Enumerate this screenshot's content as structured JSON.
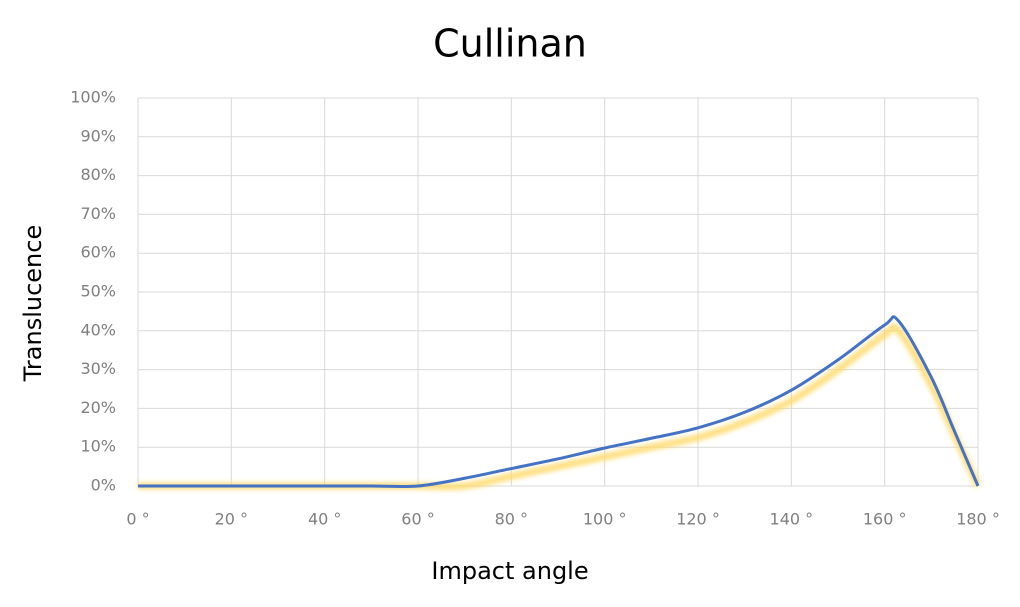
{
  "chart_data": {
    "type": "line",
    "title": "Cullinan",
    "x_label": "Impact angle",
    "y_label": "Translucence",
    "x": [
      0,
      10,
      20,
      30,
      40,
      50,
      60,
      70,
      80,
      90,
      100,
      110,
      120,
      130,
      140,
      150,
      160,
      163,
      170,
      175,
      180
    ],
    "series": [
      {
        "color": "#ffd966",
        "values": [
          0,
          0,
          0,
          0,
          0,
          0,
          0,
          0,
          2.5,
          5,
          7.5,
          10,
          12.5,
          16.5,
          22,
          30,
          39,
          40,
          26,
          13,
          0
        ]
      },
      {
        "color": "#4472c4",
        "values": [
          0,
          0,
          0,
          0,
          0,
          0,
          0,
          2,
          4.5,
          7,
          9.8,
          12.3,
          15,
          19,
          24.7,
          32.5,
          41.5,
          42.5,
          28,
          14,
          0
        ]
      }
    ],
    "xlim": [
      0,
      180
    ],
    "xticks": [
      {
        "value": 0,
        "label": "0 °"
      },
      {
        "value": 20,
        "label": "20 °"
      },
      {
        "value": 40,
        "label": "40 °"
      },
      {
        "value": 60,
        "label": "60 °"
      },
      {
        "value": 80,
        "label": "80 °"
      },
      {
        "value": 100,
        "label": "100 °"
      },
      {
        "value": 120,
        "label": "120 °"
      },
      {
        "value": 140,
        "label": "140 °"
      },
      {
        "value": 160,
        "label": "160 °"
      },
      {
        "value": 180,
        "label": "180 °"
      }
    ],
    "ylim": [
      0,
      100
    ],
    "yticks": [
      {
        "value": 0,
        "label": "0%"
      },
      {
        "value": 10,
        "label": "10%"
      },
      {
        "value": 20,
        "label": "20%"
      },
      {
        "value": 30,
        "label": "30%"
      },
      {
        "value": 40,
        "label": "40%"
      },
      {
        "value": 50,
        "label": "50%"
      },
      {
        "value": 60,
        "label": "60%"
      },
      {
        "value": 70,
        "label": "70%"
      },
      {
        "value": 80,
        "label": "80%"
      },
      {
        "value": 90,
        "label": "90%"
      },
      {
        "value": 100,
        "label": "100%"
      }
    ],
    "grid": true
  }
}
